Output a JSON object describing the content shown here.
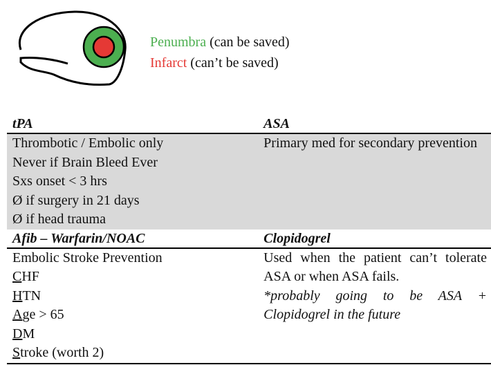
{
  "legend": {
    "penumbra_term": "Penumbra",
    "penumbra_note": "(can be saved)",
    "infarct_term": "Infarct",
    "infarct_note": "(can’t be saved)"
  },
  "colors": {
    "penumbra": "#4caf50",
    "infarct": "#e53935"
  },
  "table": {
    "tpa": {
      "header": "tPA",
      "lines": [
        "Thrombotic / Embolic only",
        "Never if Brain Bleed Ever",
        "Sxs onset < 3 hrs",
        "Ø if surgery in 21 days",
        "Ø if head trauma"
      ]
    },
    "asa": {
      "header": "ASA",
      "text": "Primary med for secondary prevention"
    },
    "afib": {
      "header": "Afib – Warfarin/NOAC",
      "first_line": "Embolic Stroke Prevention",
      "mnemonic": [
        {
          "letter": "C",
          "rest": "HF"
        },
        {
          "letter": "H",
          "rest": "TN"
        },
        {
          "letter": "A",
          "rest": "ge > 65"
        },
        {
          "letter": "D",
          "rest": "M"
        },
        {
          "letter": "S",
          "rest": "troke (worth 2)"
        }
      ]
    },
    "clopidogrel": {
      "header": "Clopidogrel",
      "text": "Used when the patient can’t tolerate ASA or when ASA fails.",
      "note": "*probably going to be ASA + Clopidogrel in the future"
    }
  }
}
